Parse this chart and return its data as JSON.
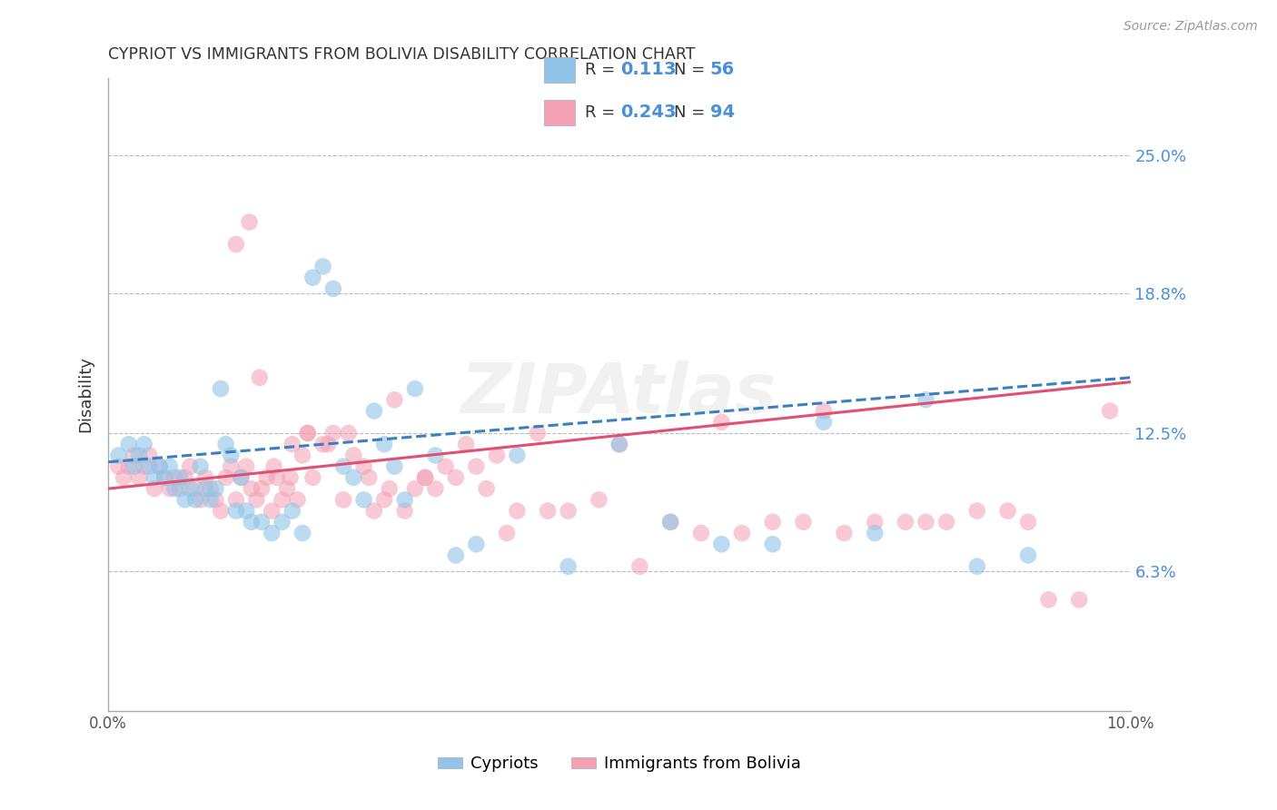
{
  "title": "CYPRIOT VS IMMIGRANTS FROM BOLIVIA DISABILITY CORRELATION CHART",
  "source": "Source: ZipAtlas.com",
  "ylabel": "Disability",
  "x_min": 0.0,
  "x_max": 10.0,
  "y_min": 0.0,
  "y_max": 28.5,
  "y_ticks": [
    6.3,
    12.5,
    18.8,
    25.0
  ],
  "y_tick_labels": [
    "6.3%",
    "12.5%",
    "18.8%",
    "25.0%"
  ],
  "blue_R": "0.113",
  "blue_N": "56",
  "pink_R": "0.243",
  "pink_N": "94",
  "blue_color": "#90c4e8",
  "pink_color": "#f4a0b5",
  "blue_line_color": "#3a7fc1",
  "pink_line_color": "#e05070",
  "legend_label_blue": "Cypriots",
  "legend_label_pink": "Immigrants from Bolivia",
  "blue_scatter_x": [
    0.1,
    0.2,
    0.25,
    0.3,
    0.35,
    0.4,
    0.45,
    0.5,
    0.55,
    0.6,
    0.65,
    0.7,
    0.75,
    0.8,
    0.85,
    0.9,
    0.95,
    1.0,
    1.05,
    1.1,
    1.15,
    1.2,
    1.25,
    1.3,
    1.35,
    1.4,
    1.5,
    1.6,
    1.7,
    1.8,
    1.9,
    2.0,
    2.1,
    2.2,
    2.3,
    2.4,
    2.5,
    2.6,
    2.7,
    2.8,
    2.9,
    3.0,
    3.2,
    3.4,
    3.6,
    4.0,
    4.5,
    5.0,
    5.5,
    6.0,
    6.5,
    7.0,
    7.5,
    8.0,
    8.5,
    9.0
  ],
  "blue_scatter_y": [
    11.5,
    12.0,
    11.0,
    11.5,
    12.0,
    11.0,
    10.5,
    11.0,
    10.5,
    11.0,
    10.0,
    10.5,
    9.5,
    10.0,
    9.5,
    11.0,
    10.0,
    9.5,
    10.0,
    14.5,
    12.0,
    11.5,
    9.0,
    10.5,
    9.0,
    8.5,
    8.5,
    8.0,
    8.5,
    9.0,
    8.0,
    19.5,
    20.0,
    19.0,
    11.0,
    10.5,
    9.5,
    13.5,
    12.0,
    11.0,
    9.5,
    14.5,
    11.5,
    7.0,
    7.5,
    11.5,
    6.5,
    12.0,
    8.5,
    7.5,
    7.5,
    13.0,
    8.0,
    14.0,
    6.5,
    7.0
  ],
  "pink_scatter_x": [
    0.1,
    0.15,
    0.2,
    0.25,
    0.3,
    0.35,
    0.4,
    0.45,
    0.5,
    0.55,
    0.6,
    0.65,
    0.7,
    0.75,
    0.8,
    0.85,
    0.9,
    0.95,
    1.0,
    1.05,
    1.1,
    1.15,
    1.2,
    1.25,
    1.3,
    1.35,
    1.4,
    1.45,
    1.5,
    1.55,
    1.6,
    1.65,
    1.7,
    1.75,
    1.8,
    1.85,
    1.9,
    1.95,
    2.0,
    2.1,
    2.2,
    2.3,
    2.4,
    2.5,
    2.6,
    2.7,
    2.8,
    2.9,
    3.0,
    3.1,
    3.2,
    3.3,
    3.4,
    3.5,
    3.6,
    3.7,
    3.8,
    4.0,
    4.2,
    4.5,
    4.8,
    5.0,
    5.5,
    6.0,
    6.5,
    7.0,
    7.5,
    8.0,
    8.5,
    9.0,
    9.5,
    5.8,
    6.2,
    6.8,
    7.2,
    7.8,
    8.2,
    8.8,
    9.2,
    9.8,
    5.2,
    4.3,
    3.9,
    3.1,
    2.75,
    2.55,
    2.35,
    2.15,
    1.95,
    1.78,
    1.62,
    1.48,
    1.38,
    1.25
  ],
  "pink_scatter_y": [
    11.0,
    10.5,
    11.0,
    11.5,
    10.5,
    11.0,
    11.5,
    10.0,
    11.0,
    10.5,
    10.0,
    10.5,
    10.0,
    10.5,
    11.0,
    10.0,
    9.5,
    10.5,
    10.0,
    9.5,
    9.0,
    10.5,
    11.0,
    9.5,
    10.5,
    11.0,
    10.0,
    9.5,
    10.0,
    10.5,
    9.0,
    10.5,
    9.5,
    10.0,
    12.0,
    9.5,
    11.5,
    12.5,
    10.5,
    12.0,
    12.5,
    9.5,
    11.5,
    11.0,
    9.0,
    9.5,
    14.0,
    9.0,
    10.0,
    10.5,
    10.0,
    11.0,
    10.5,
    12.0,
    11.0,
    10.0,
    11.5,
    9.0,
    12.5,
    9.0,
    9.5,
    12.0,
    8.5,
    13.0,
    8.5,
    13.5,
    8.5,
    8.5,
    9.0,
    8.5,
    5.0,
    8.0,
    8.0,
    8.5,
    8.0,
    8.5,
    8.5,
    9.0,
    5.0,
    13.5,
    6.5,
    9.0,
    8.0,
    10.5,
    10.0,
    10.5,
    12.5,
    12.0,
    12.5,
    10.5,
    11.0,
    15.0,
    22.0,
    21.0
  ]
}
